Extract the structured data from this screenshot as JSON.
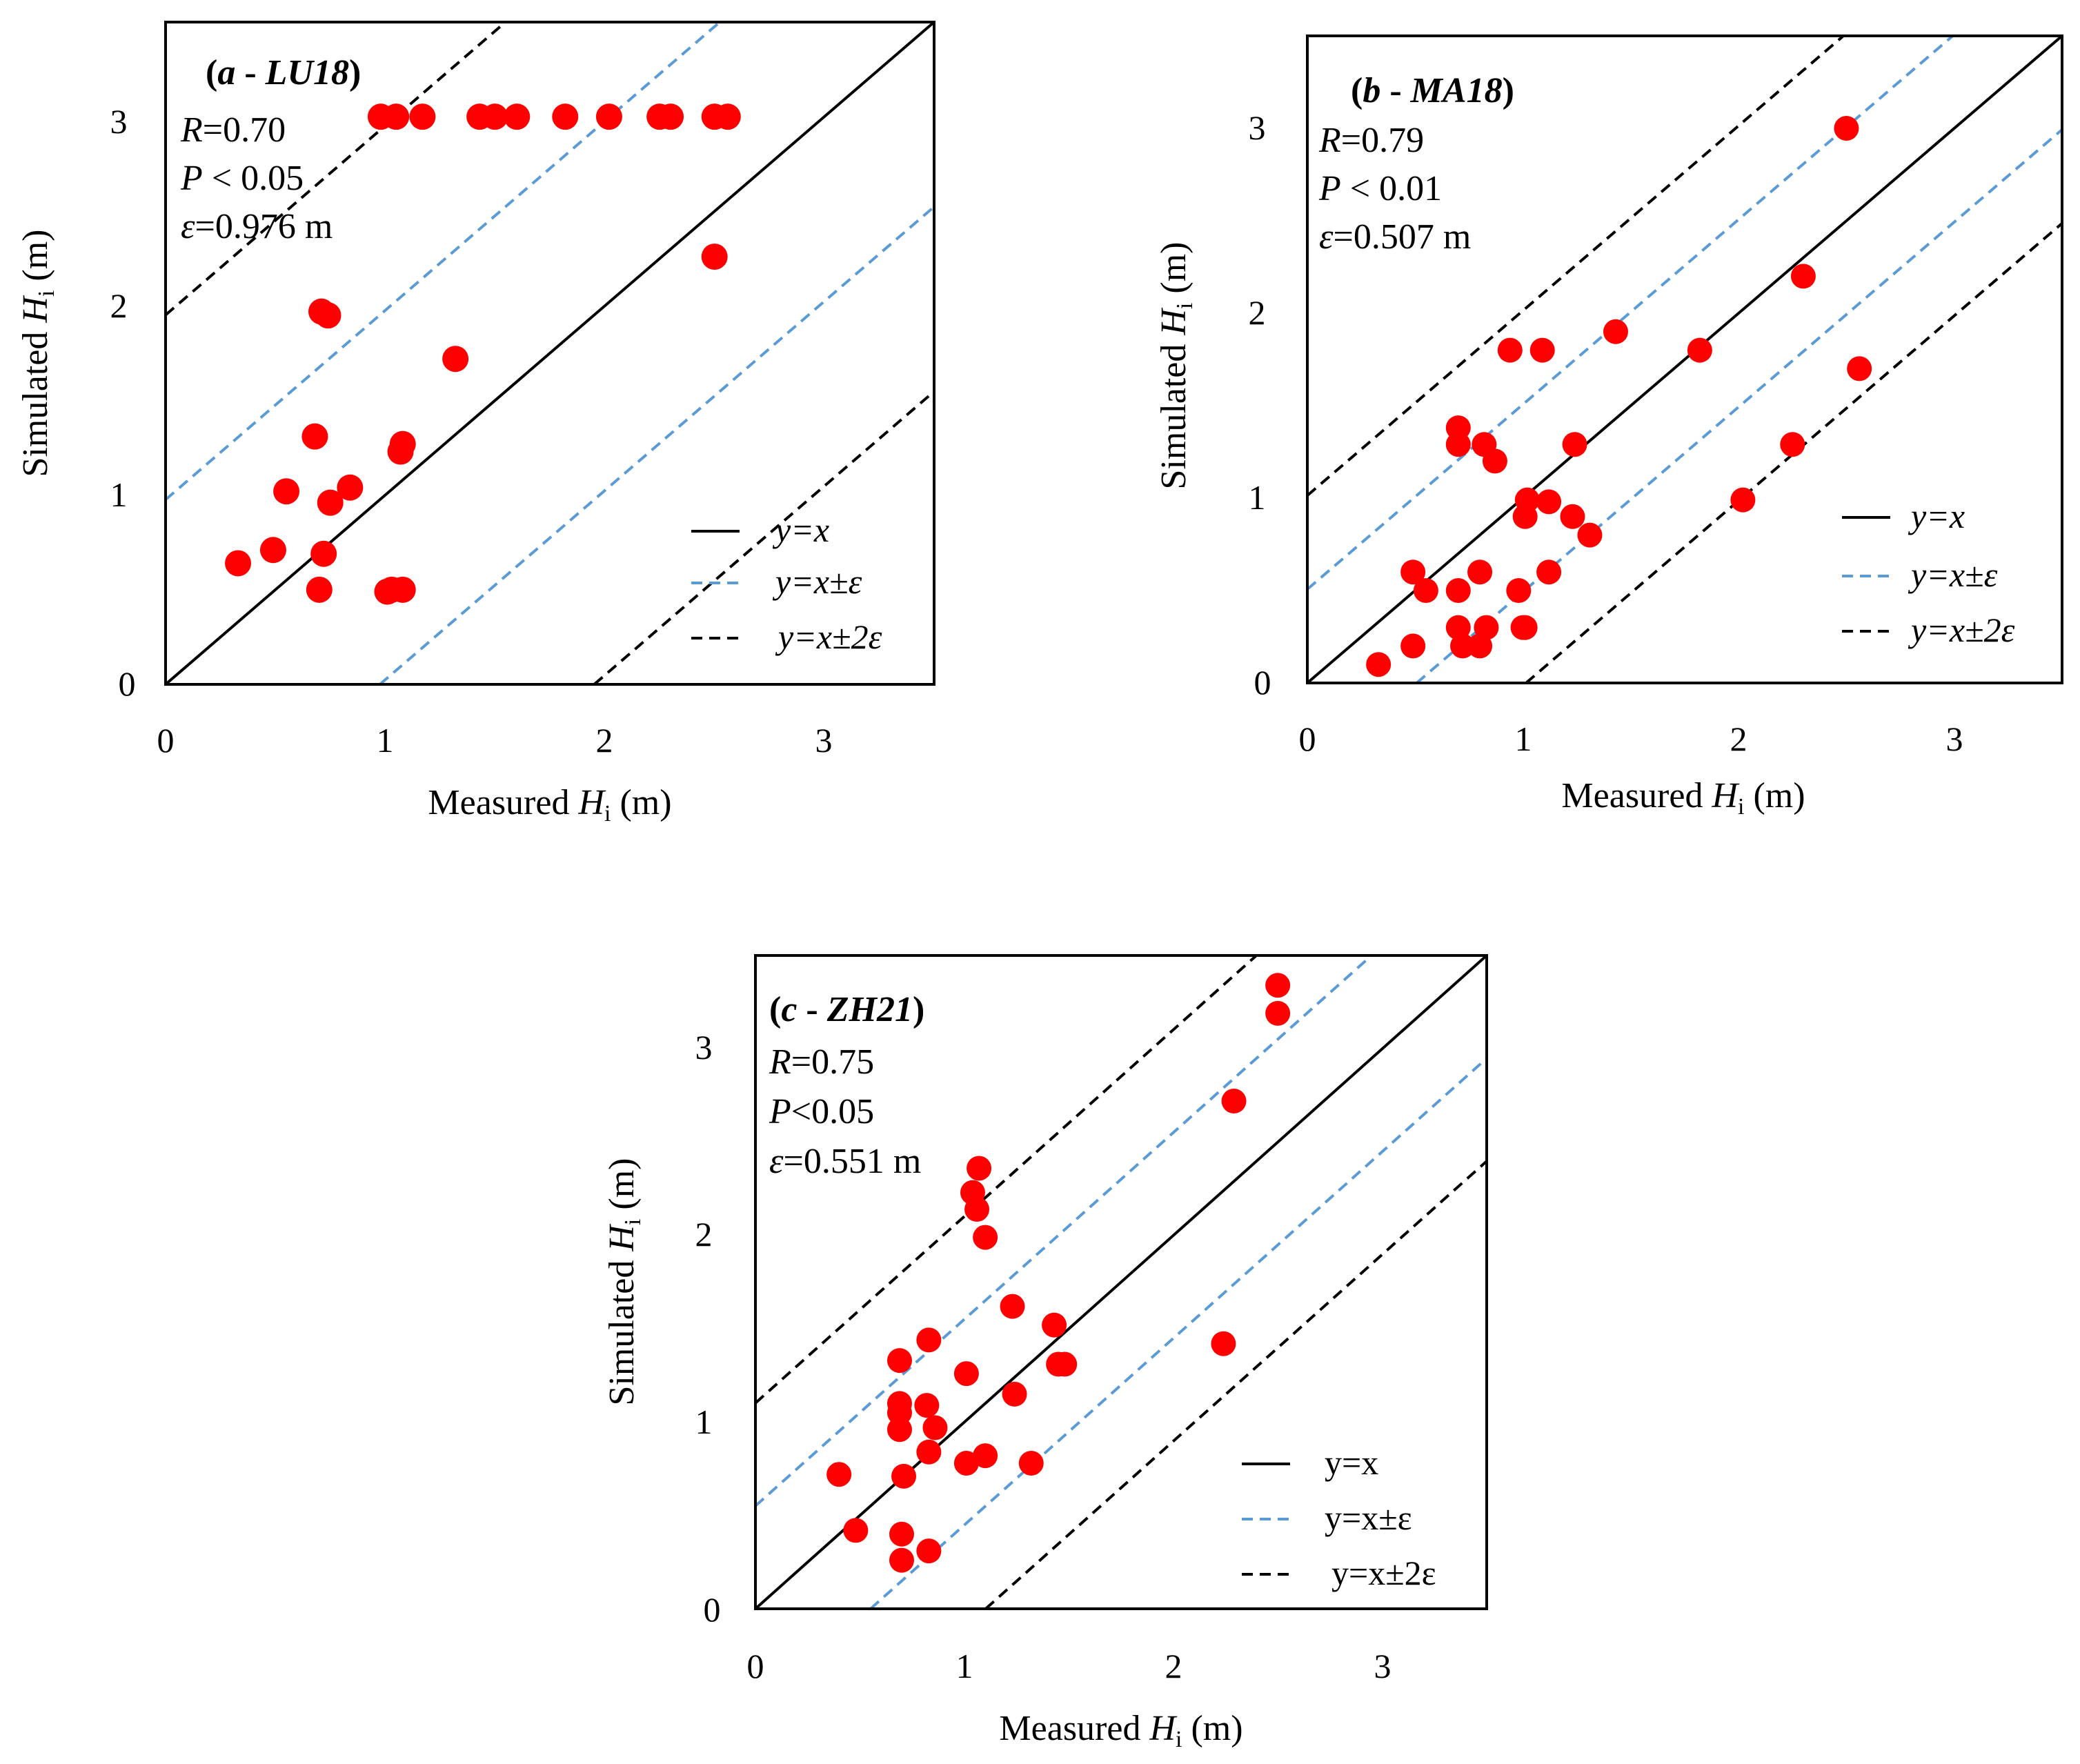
{
  "colors": {
    "points": "#ff0000",
    "identity_line": "#000000",
    "band_eps": "#5b9bd5",
    "band_2eps": "#000000",
    "frame": "#000000"
  },
  "chart_data": [
    {
      "type": "scatter",
      "panel": "a",
      "title": "(a - LU18)",
      "title_parts": {
        "open": "(",
        "letter": "a",
        "sep": " - ",
        "code": "LU18",
        "close": ")"
      },
      "stats": {
        "R_label": "R",
        "R_value": "=0.70",
        "P_label": "P",
        "P_value": " < 0.05",
        "eps_label": "ε",
        "eps_value": "=0.976 m"
      },
      "epsilon": 0.976,
      "xlabel": {
        "prefix": "Measured ",
        "var": "H",
        "sub": "i",
        "suffix": " (m)"
      },
      "ylabel": {
        "prefix": "Simulated ",
        "var": "H",
        "sub": "i",
        "suffix": " (m)"
      },
      "xlim": [
        0,
        3.5
      ],
      "ylim": [
        0,
        3.5
      ],
      "xticks": [
        "0",
        "1",
        "2",
        "3"
      ],
      "yticks": [
        "0",
        "1",
        "2",
        "3"
      ],
      "legend": [
        "y=x",
        "y=x±ε",
        "y=x±2ε"
      ],
      "legend_italic": true,
      "legend_position": "bottom-right",
      "points": [
        [
          0.33,
          0.64
        ],
        [
          0.49,
          0.71
        ],
        [
          0.55,
          1.02
        ],
        [
          0.68,
          1.31
        ],
        [
          0.7,
          0.5
        ],
        [
          0.71,
          1.97
        ],
        [
          0.72,
          0.69
        ],
        [
          0.74,
          1.95
        ],
        [
          0.75,
          0.96
        ],
        [
          0.84,
          1.04
        ],
        [
          1.01,
          0.49
        ],
        [
          1.03,
          0.5
        ],
        [
          1.08,
          0.5
        ],
        [
          1.07,
          1.23
        ],
        [
          1.08,
          1.27
        ],
        [
          1.32,
          1.72
        ],
        [
          0.98,
          3.0
        ],
        [
          1.05,
          3.0
        ],
        [
          1.17,
          3.0
        ],
        [
          1.43,
          3.0
        ],
        [
          1.5,
          3.0
        ],
        [
          1.6,
          3.0
        ],
        [
          1.82,
          3.0
        ],
        [
          2.02,
          3.0
        ],
        [
          2.25,
          3.0
        ],
        [
          2.3,
          3.0
        ],
        [
          2.5,
          3.0
        ],
        [
          2.56,
          3.0
        ],
        [
          2.5,
          2.26
        ]
      ]
    },
    {
      "type": "scatter",
      "panel": "b",
      "title": "(b - MA18)",
      "title_parts": {
        "open": "(",
        "letter": "b",
        "sep": " - ",
        "code": "MA18",
        "close": ")"
      },
      "stats": {
        "R_label": "R",
        "R_value": "=0.79",
        "P_label": "P",
        "P_value": " < 0.01",
        "eps_label": "ε",
        "eps_value": "=0.507 m"
      },
      "epsilon": 0.507,
      "xlabel": {
        "prefix": "Measured ",
        "var": "H",
        "sub": "i",
        "suffix": " (m)"
      },
      "ylabel": {
        "prefix": "Simulated ",
        "var": "H",
        "sub": "i",
        "suffix": " (m)"
      },
      "xlim": [
        0,
        3.5
      ],
      "ylim": [
        0,
        3.5
      ],
      "xticks": [
        "0",
        "1",
        "2",
        "3"
      ],
      "yticks": [
        "0",
        "1",
        "2",
        "3"
      ],
      "legend": [
        "y=x",
        "y=x±ε",
        "y=x±2ε"
      ],
      "legend_italic": true,
      "legend_position": "bottom-right",
      "points": [
        [
          0.33,
          0.1
        ],
        [
          0.49,
          0.2
        ],
        [
          0.49,
          0.6
        ],
        [
          0.55,
          0.5
        ],
        [
          0.7,
          1.38
        ],
        [
          0.7,
          1.29
        ],
        [
          0.7,
          0.5
        ],
        [
          0.7,
          0.3
        ],
        [
          0.72,
          0.2
        ],
        [
          0.8,
          0.6
        ],
        [
          0.8,
          0.2
        ],
        [
          0.82,
          1.29
        ],
        [
          0.83,
          0.3
        ],
        [
          0.87,
          1.2
        ],
        [
          0.94,
          1.8
        ],
        [
          0.98,
          0.5
        ],
        [
          1.0,
          0.3
        ],
        [
          1.01,
          0.3
        ],
        [
          1.01,
          0.9
        ],
        [
          1.02,
          0.99
        ],
        [
          1.09,
          1.8
        ],
        [
          1.12,
          0.6
        ],
        [
          1.12,
          0.98
        ],
        [
          1.23,
          0.9
        ],
        [
          1.24,
          1.29
        ],
        [
          1.31,
          0.8
        ],
        [
          1.43,
          1.9
        ],
        [
          1.82,
          1.8
        ],
        [
          2.02,
          0.99
        ],
        [
          2.25,
          1.29
        ],
        [
          2.3,
          2.2
        ],
        [
          2.5,
          3.0
        ],
        [
          2.56,
          1.7
        ]
      ]
    },
    {
      "type": "scatter",
      "panel": "c",
      "title": "(c - ZH21)",
      "title_parts": {
        "open": "(",
        "letter": "c",
        "sep": " - ",
        "code": "ZH21",
        "close": ")"
      },
      "stats": {
        "R_label": "R",
        "R_value": "=0.75",
        "P_label": "P",
        "P_value": "<0.05",
        "eps_label": "ε",
        "eps_value": "=0.551 m"
      },
      "epsilon": 0.551,
      "xlabel": {
        "prefix": "Measured ",
        "var": "H",
        "sub": "i",
        "suffix": " (m)"
      },
      "ylabel": {
        "prefix": "Simulated ",
        "var": "H",
        "sub": "i",
        "suffix": " (m)"
      },
      "xlim": [
        0,
        3.5
      ],
      "ylim": [
        0,
        3.5
      ],
      "xticks": [
        "0",
        "1",
        "2",
        "3"
      ],
      "yticks": [
        "0",
        "1",
        "2",
        "3"
      ],
      "legend": [
        "y=x",
        "y=x±ε",
        "y=x±2ε"
      ],
      "legend_italic": false,
      "legend_position": "bottom-right",
      "points": [
        [
          0.4,
          0.72
        ],
        [
          0.48,
          0.42
        ],
        [
          0.69,
          1.33
        ],
        [
          0.69,
          1.1
        ],
        [
          0.69,
          1.05
        ],
        [
          0.69,
          0.96
        ],
        [
          0.7,
          0.4
        ],
        [
          0.7,
          0.26
        ],
        [
          0.71,
          0.71
        ],
        [
          0.82,
          1.09
        ],
        [
          0.83,
          1.44
        ],
        [
          0.83,
          0.84
        ],
        [
          0.83,
          0.31
        ],
        [
          0.86,
          0.97
        ],
        [
          1.01,
          1.26
        ],
        [
          1.01,
          0.78
        ],
        [
          1.04,
          2.23
        ],
        [
          1.06,
          2.14
        ],
        [
          1.07,
          2.36
        ],
        [
          1.1,
          1.99
        ],
        [
          1.1,
          0.82
        ],
        [
          1.23,
          1.62
        ],
        [
          1.24,
          1.15
        ],
        [
          1.32,
          0.78
        ],
        [
          1.43,
          1.52
        ],
        [
          1.45,
          1.31
        ],
        [
          1.48,
          1.31
        ],
        [
          2.24,
          1.42
        ],
        [
          2.29,
          2.72
        ],
        [
          2.5,
          3.34
        ],
        [
          2.5,
          3.19
        ]
      ]
    }
  ]
}
